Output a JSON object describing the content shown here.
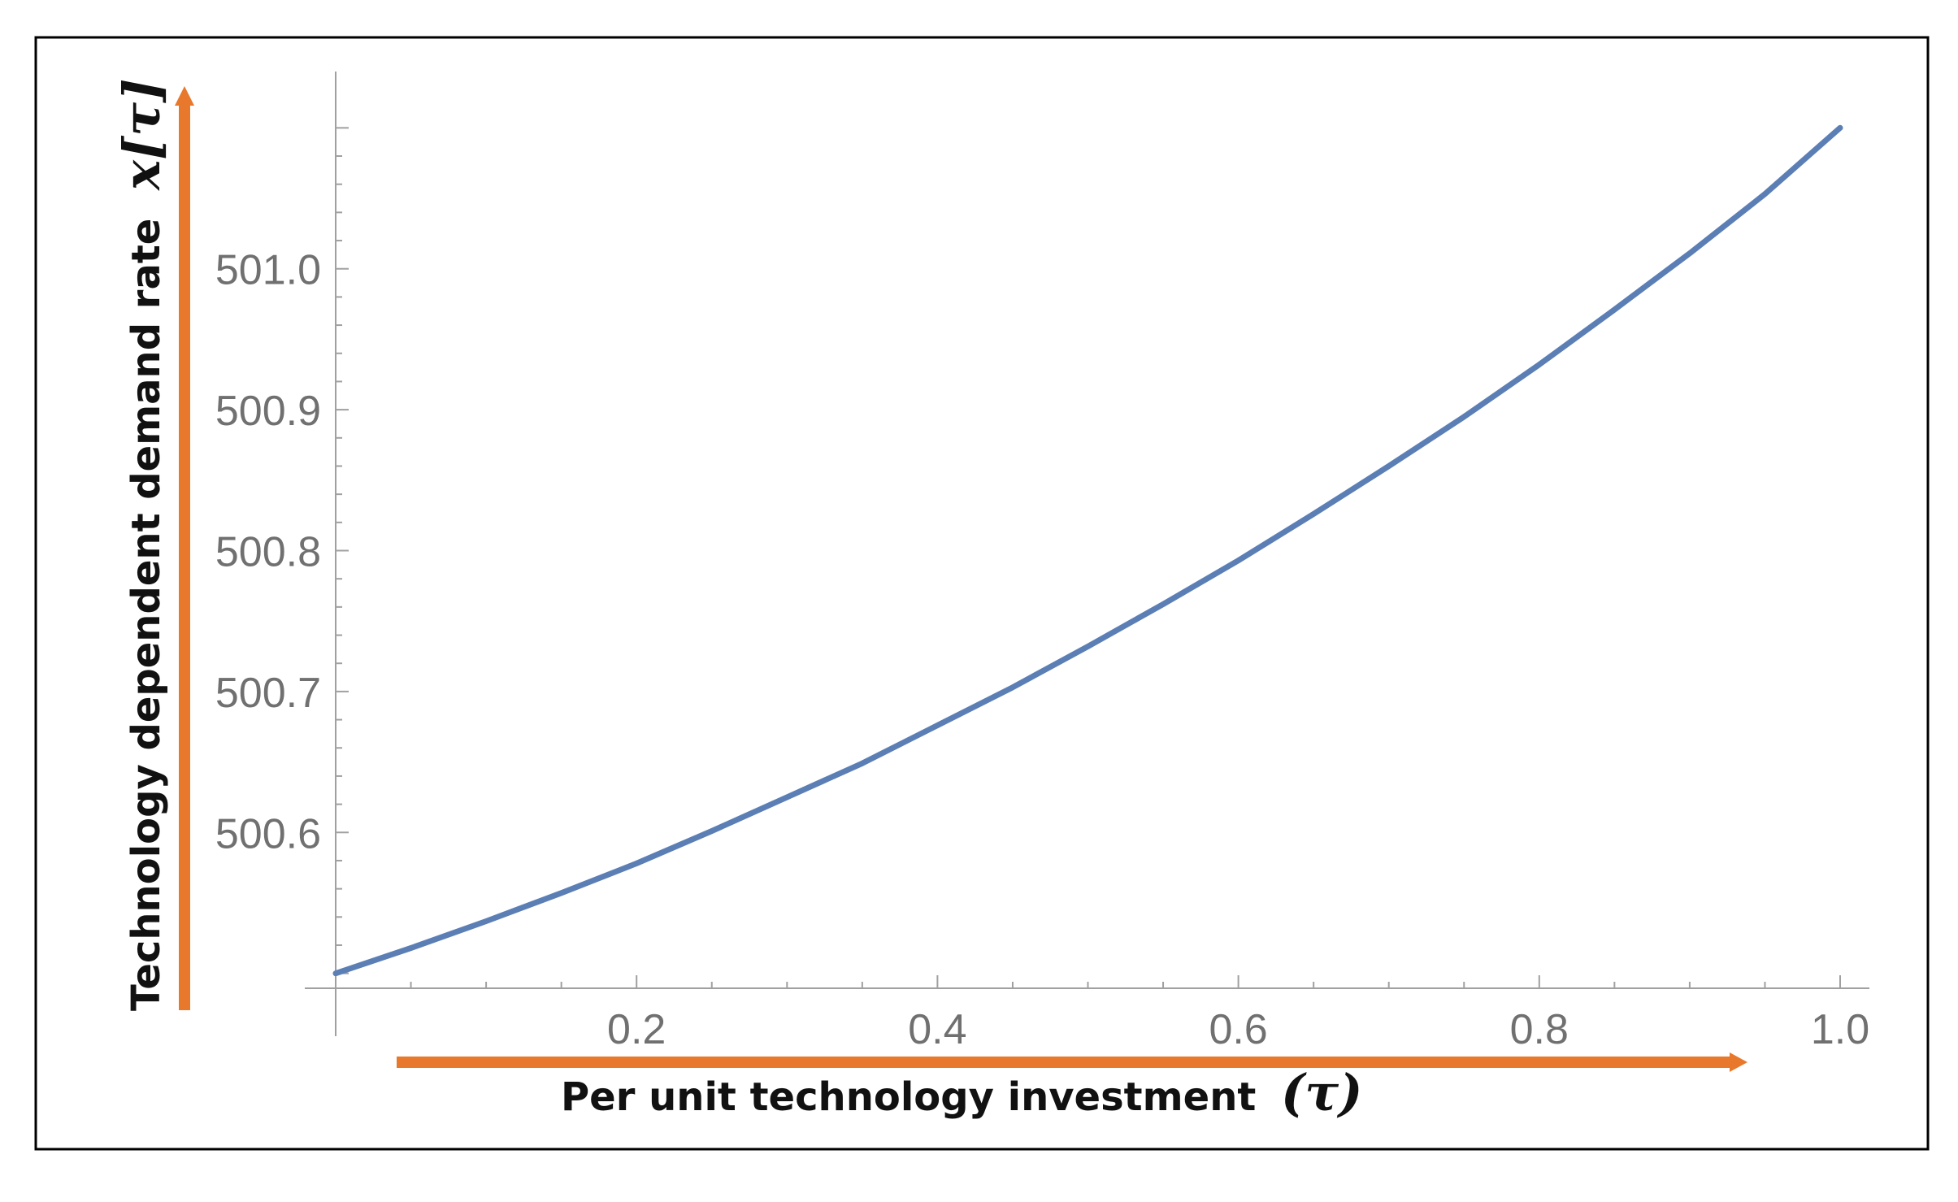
{
  "chart_data": {
    "type": "line",
    "title": "",
    "xlabel": "Per unit technology investment",
    "xlabel_symbol": "(τ)",
    "ylabel": "Technology dependent  demand rate",
    "ylabel_symbol": "x[τ]",
    "xlim": [
      0,
      1.0
    ],
    "ylim": [
      500.49,
      501.11
    ],
    "x_ticks": [
      0.2,
      0.4,
      0.6,
      0.8,
      1.0
    ],
    "x_tick_labels": [
      "0.2",
      "0.4",
      "0.6",
      "0.8",
      "1.0"
    ],
    "y_ticks": [
      500.6,
      500.7,
      500.8,
      500.9,
      501.0
    ],
    "y_tick_labels": [
      "500.6",
      "500.7",
      "500.8",
      "500.9",
      "501.0"
    ],
    "series": [
      {
        "x": [
          0.0,
          0.05,
          0.1,
          0.15,
          0.2,
          0.25,
          0.3,
          0.35,
          0.4,
          0.45,
          0.5,
          0.55,
          0.6,
          0.65,
          0.7,
          0.75,
          0.8,
          0.85,
          0.9,
          0.95,
          1.0
        ],
        "y": [
          500.5,
          500.518,
          500.537,
          500.557,
          500.578,
          500.601,
          500.625,
          500.649,
          500.676,
          500.703,
          500.732,
          500.762,
          500.793,
          500.826,
          500.86,
          500.895,
          500.932,
          500.971,
          501.011,
          501.053,
          501.1
        ]
      }
    ],
    "grid": false,
    "colors": {
      "line": "#5b7fb5",
      "arrow": "#e8792c",
      "axis": "#a0a0a0",
      "tick_text": "#707070",
      "frame": "#000000"
    }
  }
}
